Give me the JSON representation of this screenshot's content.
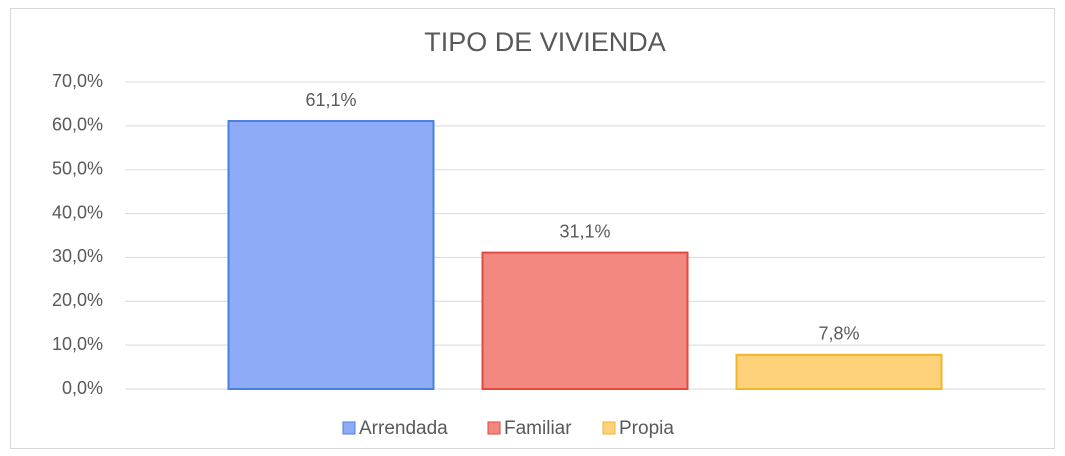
{
  "chart_data": {
    "type": "bar",
    "title": "TIPO DE VIVIENDA",
    "categories": [
      null
    ],
    "series": [
      {
        "name": "Arrendada",
        "color": "#8eabf8",
        "values": [
          61.1
        ],
        "value_labels": [
          "61,1%"
        ]
      },
      {
        "name": "Familiar",
        "color": "#f28880",
        "values": [
          31.1
        ],
        "value_labels": [
          "31,1%"
        ]
      },
      {
        "name": "Propia",
        "color": "#fdd27a",
        "values": [
          7.8
        ],
        "value_labels": [
          "7,8%"
        ]
      }
    ],
    "ylim": [
      0,
      70
    ],
    "yticks": [
      {
        "value": 0,
        "label": "0,0%"
      },
      {
        "value": 10,
        "label": "10,0%"
      },
      {
        "value": 20,
        "label": "20,0%"
      },
      {
        "value": 30,
        "label": "30,0%"
      },
      {
        "value": 40,
        "label": "40,0%"
      },
      {
        "value": 50,
        "label": "50,0%"
      },
      {
        "value": 60,
        "label": "60,0%"
      },
      {
        "value": 70,
        "label": "70,0%"
      }
    ],
    "grid": true,
    "legend": "bottom"
  }
}
